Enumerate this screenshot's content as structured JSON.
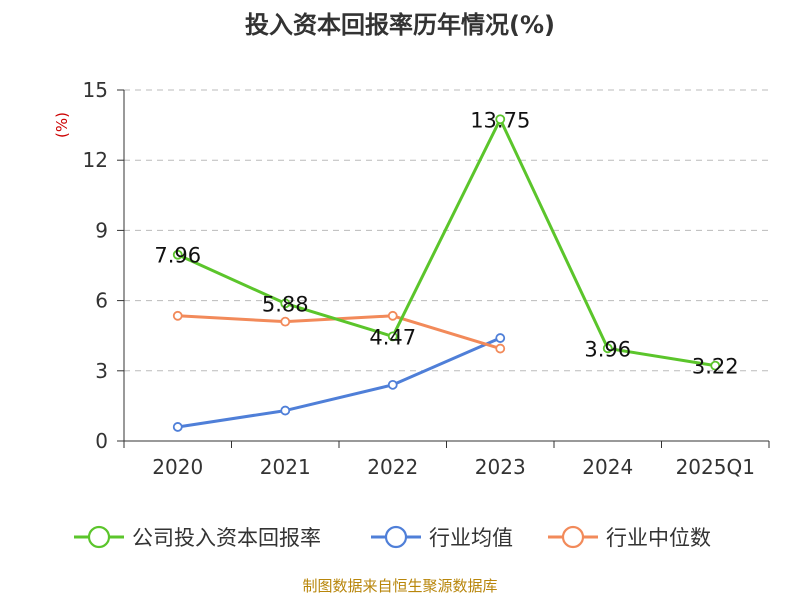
{
  "colors": {
    "company": "#5bc52b",
    "industry_avg": "#4f7fd8",
    "industry_median": "#f28a5a",
    "unit": "#cc0000",
    "source": "#b8860b",
    "grid": "#bbbbbb",
    "axis": "#333333"
  },
  "source_text": "制图数据来自恒生聚源数据库",
  "chart_data": {
    "type": "line",
    "title": "投入资本回报率历年情况(%)",
    "ylabel": "(%)",
    "xlabel": "",
    "categories": [
      "2020",
      "2021",
      "2022",
      "2023",
      "2024",
      "2025Q1"
    ],
    "ylim": [
      0,
      15
    ],
    "yticks": [
      0,
      3,
      6,
      9,
      12,
      15
    ],
    "grid": true,
    "legend_position": "bottom",
    "series": [
      {
        "name": "公司投入资本回报率",
        "color_key": "company",
        "values": [
          7.96,
          5.88,
          4.47,
          13.75,
          3.96,
          3.22
        ],
        "labels": [
          "7.96",
          "5.88",
          "4.47",
          "13.75",
          "3.96",
          "3.22"
        ]
      },
      {
        "name": "行业均值",
        "color_key": "industry_avg",
        "values": [
          0.6,
          1.3,
          2.4,
          4.4,
          null,
          null
        ]
      },
      {
        "name": "行业中位数",
        "color_key": "industry_median",
        "values": [
          5.35,
          5.1,
          5.35,
          3.95,
          null,
          null
        ]
      }
    ]
  }
}
